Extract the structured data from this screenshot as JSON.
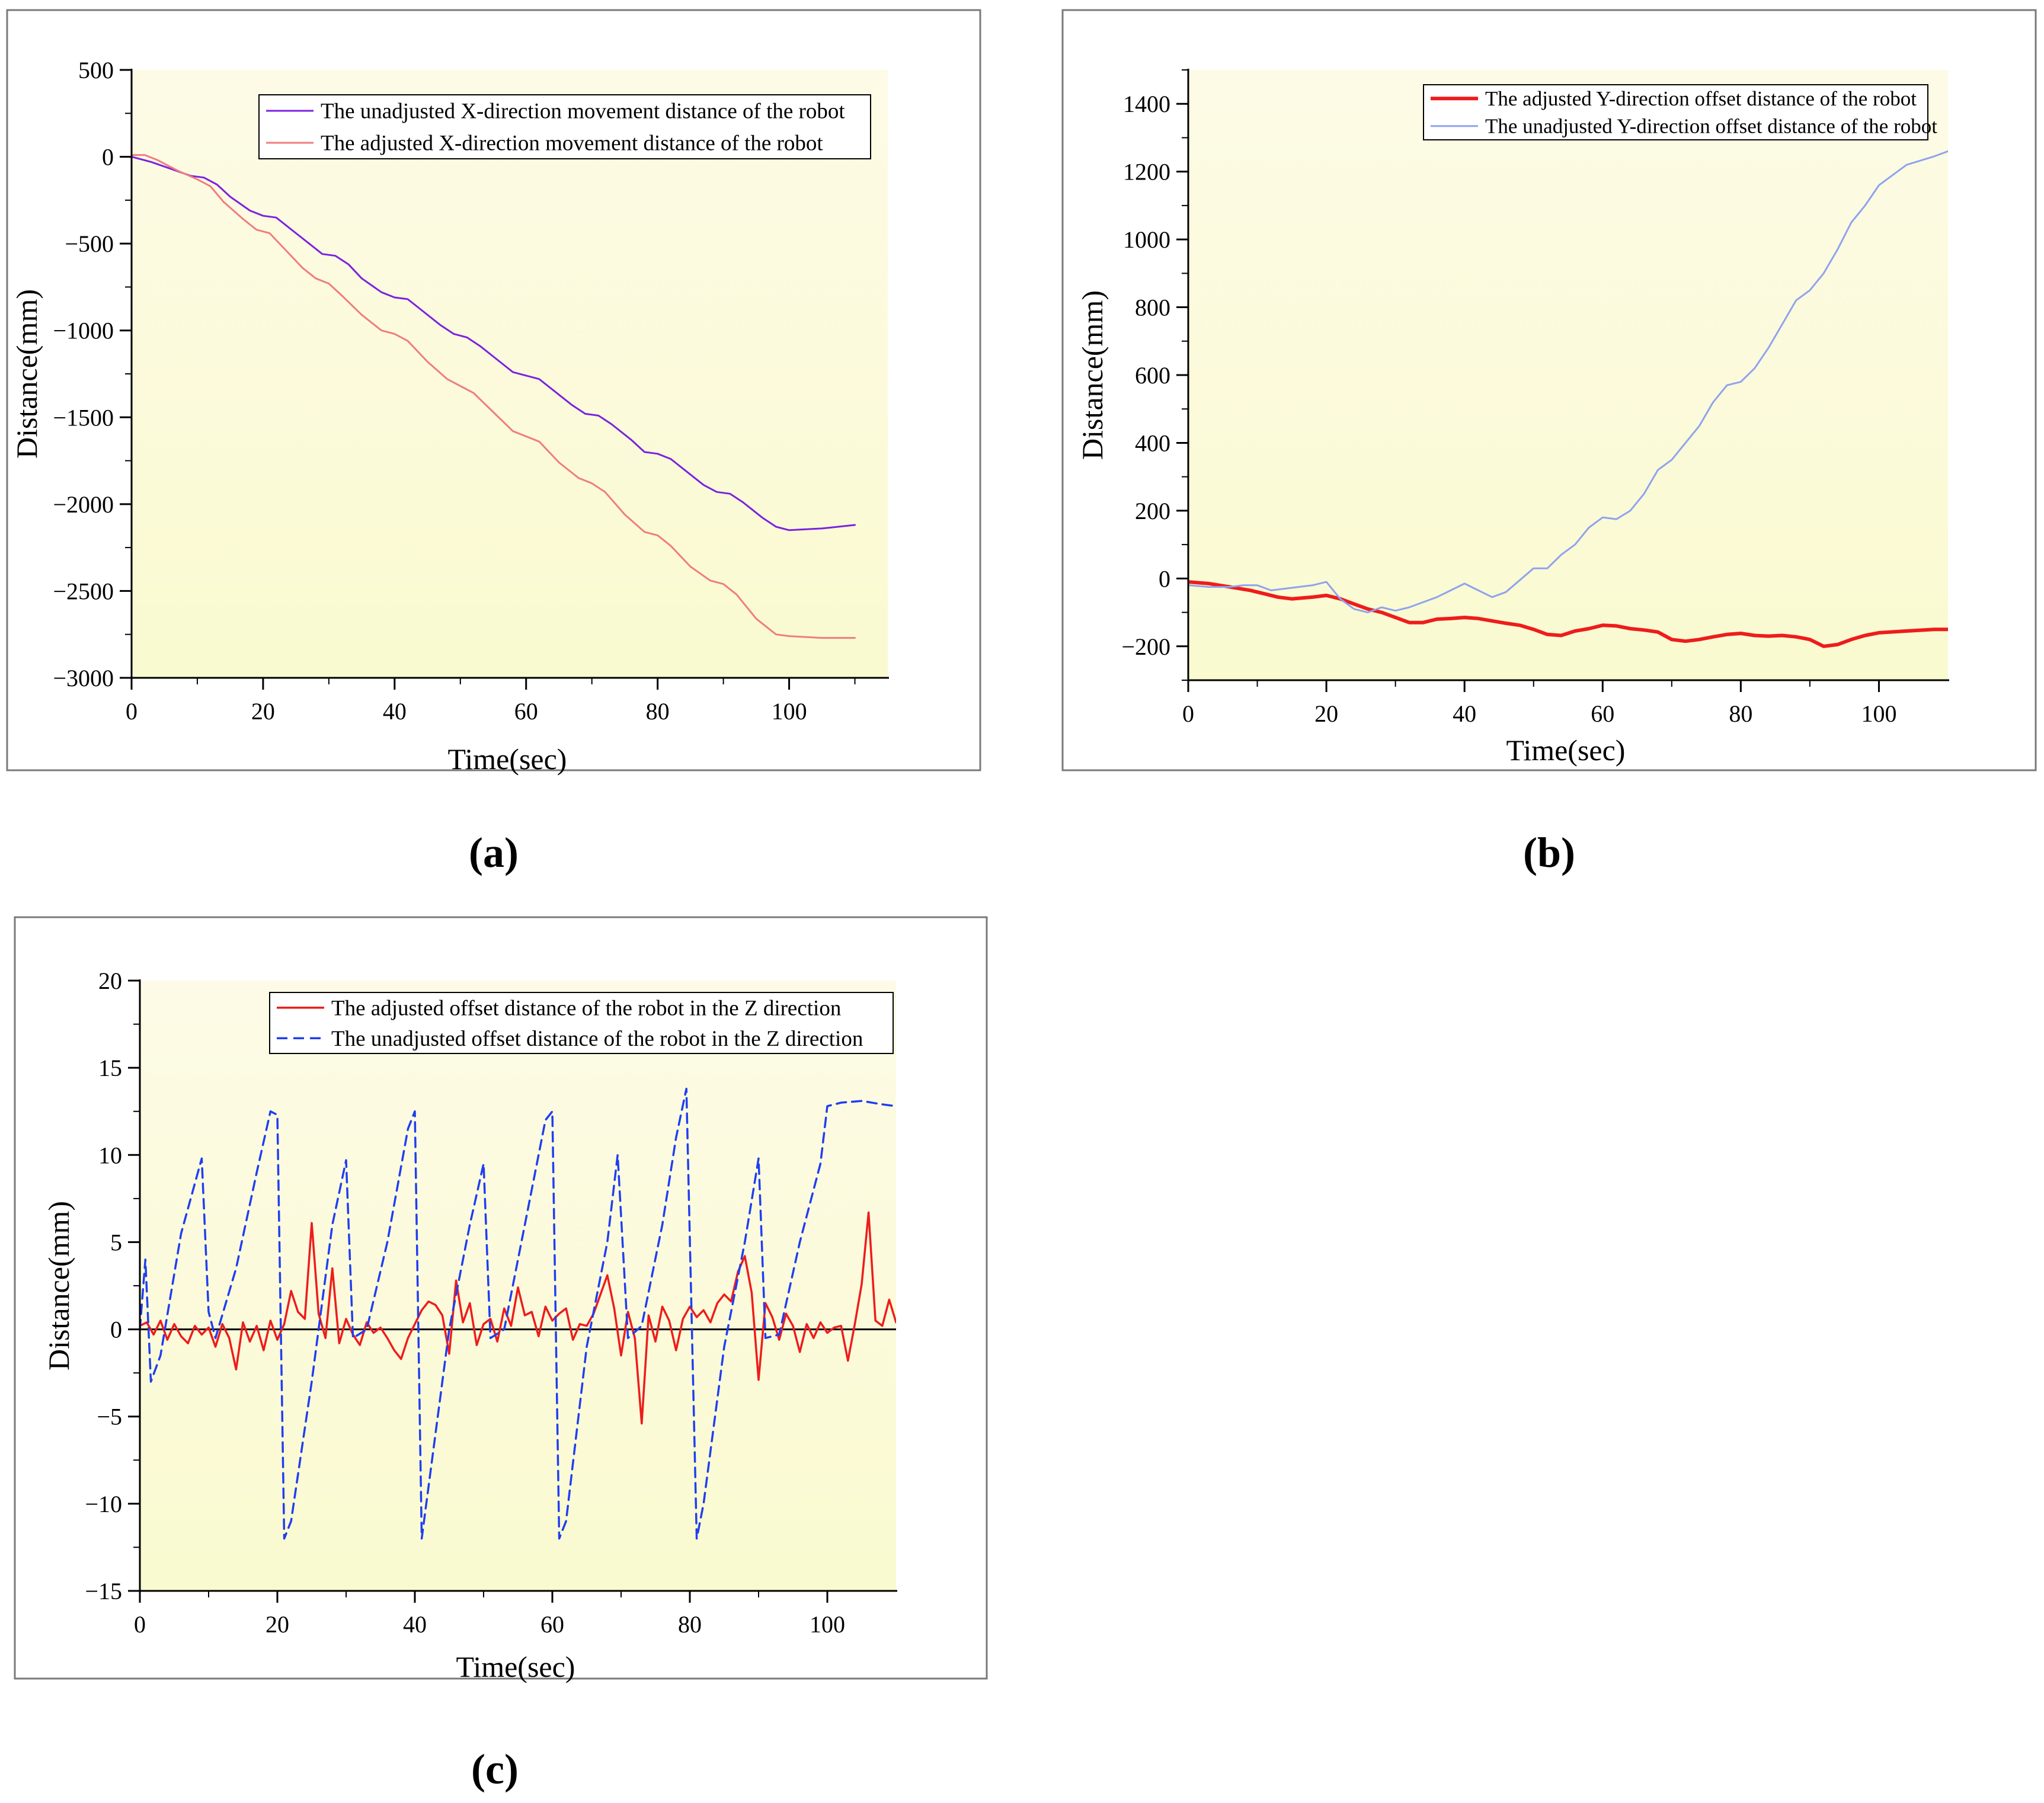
{
  "figure": {
    "panels": [
      {
        "label": "(a)",
        "title": "",
        "xlabel": "Time(sec)",
        "ylabel": "Distance(mm)",
        "xlim": [
          0,
          115
        ],
        "ylim": [
          -3000,
          500
        ],
        "xticks": [
          0,
          20,
          40,
          60,
          80,
          100
        ],
        "yticks": [
          500,
          0,
          -500,
          -1000,
          -1500,
          -2000,
          -2500,
          -3000
        ],
        "legend_position": "top-right"
      },
      {
        "label": "(b)",
        "title": "",
        "xlabel": "Time(sec)",
        "ylabel": "Distance(mm)",
        "xlim": [
          0,
          110
        ],
        "ylim": [
          -300,
          1500
        ],
        "xticks": [
          0,
          20,
          40,
          60,
          80,
          100
        ],
        "yticks": [
          1400,
          1200,
          1000,
          800,
          600,
          400,
          200,
          0,
          -200
        ],
        "legend_position": "top-right"
      },
      {
        "label": "(c)",
        "title": "",
        "xlabel": "Time(sec)",
        "ylabel": "Distance(mm)",
        "xlim": [
          0,
          110
        ],
        "ylim": [
          -15,
          20
        ],
        "xticks": [
          0,
          20,
          40,
          60,
          80,
          100
        ],
        "yticks": [
          20,
          15,
          10,
          5,
          0,
          -5,
          -10,
          -15
        ],
        "legend_position": "top-right"
      }
    ]
  },
  "chart_data": [
    {
      "type": "line",
      "title": "",
      "xlabel": "Time(sec)",
      "ylabel": "Distance(mm)",
      "ylim": [
        -3000,
        500
      ],
      "series": [
        {
          "name": "The unadjusted X-direction movement distance of the robot",
          "color": "#7b22e0",
          "dash": "",
          "width": 3,
          "x": [
            0,
            3,
            6,
            9,
            11,
            13,
            15,
            18,
            20,
            22,
            24,
            27,
            29,
            31,
            33,
            35,
            38,
            40,
            42,
            44,
            47,
            49,
            51,
            53,
            56,
            58,
            60,
            62,
            64,
            67,
            69,
            71,
            73,
            76,
            78,
            80,
            82,
            84,
            87,
            89,
            91,
            93,
            96,
            98,
            100,
            105,
            110
          ],
          "y": [
            0,
            -30,
            -70,
            -110,
            -120,
            -160,
            -230,
            -310,
            -340,
            -350,
            -410,
            -500,
            -560,
            -570,
            -620,
            -700,
            -780,
            -810,
            -820,
            -880,
            -970,
            -1020,
            -1040,
            -1090,
            -1180,
            -1240,
            -1260,
            -1280,
            -1340,
            -1430,
            -1480,
            -1490,
            -1540,
            -1630,
            -1700,
            -1710,
            -1740,
            -1800,
            -1890,
            -1930,
            -1940,
            -1990,
            -2080,
            -2130,
            -2150,
            -2140,
            -2120
          ]
        },
        {
          "name": "The adjusted X-direction movement distance of the robot",
          "color": "#f07d7d",
          "dash": "",
          "width": 3,
          "x": [
            0,
            2,
            4,
            7,
            10,
            12,
            14,
            17,
            19,
            21,
            23,
            26,
            28,
            30,
            32,
            35,
            38,
            40,
            42,
            45,
            48,
            50,
            52,
            55,
            58,
            60,
            62,
            65,
            68,
            70,
            72,
            75,
            78,
            80,
            82,
            85,
            88,
            90,
            92,
            95,
            98,
            100,
            105,
            110
          ],
          "y": [
            10,
            10,
            -20,
            -80,
            -130,
            -170,
            -260,
            -360,
            -420,
            -440,
            -520,
            -640,
            -700,
            -730,
            -800,
            -910,
            -1000,
            -1020,
            -1060,
            -1180,
            -1280,
            -1320,
            -1360,
            -1470,
            -1580,
            -1610,
            -1640,
            -1760,
            -1850,
            -1880,
            -1930,
            -2060,
            -2160,
            -2180,
            -2240,
            -2360,
            -2440,
            -2460,
            -2520,
            -2660,
            -2750,
            -2760,
            -2770,
            -2770
          ]
        }
      ]
    },
    {
      "type": "line",
      "title": "",
      "xlabel": "Time(sec)",
      "ylabel": "Distance(mm)",
      "ylim": [
        -300,
        1500
      ],
      "series": [
        {
          "name": "The adjusted Y-direction offset distance of the robot",
          "color": "#ee1c1c",
          "dash": "",
          "width": 6,
          "x": [
            0,
            3,
            6,
            9,
            11,
            13,
            15,
            18,
            20,
            22,
            24,
            26,
            28,
            30,
            32,
            34,
            36,
            38,
            40,
            42,
            44,
            46,
            48,
            50,
            52,
            54,
            56,
            58,
            60,
            62,
            64,
            66,
            68,
            70,
            72,
            74,
            76,
            78,
            80,
            82,
            84,
            86,
            88,
            90,
            92,
            94,
            96,
            98,
            100,
            104,
            108,
            110
          ],
          "y": [
            -10,
            -15,
            -25,
            -35,
            -45,
            -55,
            -60,
            -55,
            -50,
            -60,
            -75,
            -90,
            -100,
            -115,
            -130,
            -130,
            -120,
            -118,
            -115,
            -118,
            -125,
            -132,
            -138,
            -150,
            -165,
            -168,
            -155,
            -148,
            -138,
            -140,
            -148,
            -152,
            -158,
            -180,
            -185,
            -180,
            -172,
            -165,
            -162,
            -168,
            -170,
            -168,
            -172,
            -180,
            -200,
            -195,
            -180,
            -168,
            -160,
            -155,
            -150,
            -150
          ]
        },
        {
          "name": "The unadjusted Y-direction offset distance of the robot",
          "color": "#8fa3ee",
          "dash": "",
          "width": 3,
          "x": [
            0,
            3,
            6,
            8,
            10,
            12,
            14,
            16,
            18,
            20,
            22,
            24,
            26,
            28,
            30,
            32,
            34,
            36,
            38,
            40,
            42,
            44,
            46,
            48,
            50,
            52,
            54,
            56,
            58,
            60,
            62,
            64,
            66,
            68,
            70,
            72,
            74,
            76,
            78,
            80,
            82,
            84,
            86,
            88,
            90,
            92,
            94,
            96,
            98,
            100,
            104,
            108,
            110
          ],
          "y": [
            -20,
            -25,
            -25,
            -20,
            -20,
            -35,
            -30,
            -25,
            -20,
            -10,
            -60,
            -90,
            -100,
            -85,
            -95,
            -85,
            -70,
            -55,
            -35,
            -15,
            -35,
            -55,
            -40,
            -5,
            30,
            30,
            70,
            100,
            150,
            180,
            175,
            200,
            250,
            320,
            350,
            400,
            450,
            520,
            570,
            580,
            620,
            680,
            750,
            820,
            850,
            900,
            970,
            1050,
            1100,
            1160,
            1220,
            1245,
            1260
          ]
        }
      ]
    },
    {
      "type": "line",
      "title": "",
      "xlabel": "Time(sec)",
      "ylabel": "Distance(mm)",
      "ylim": [
        -15,
        20
      ],
      "series": [
        {
          "name": "The adjusted offset distance of the robot in the Z direction",
          "color": "#ee1c1c",
          "dash": "",
          "width": 3.5,
          "x": [
            0,
            1,
            2,
            3,
            4,
            5,
            6,
            7,
            8,
            9,
            10,
            11,
            12,
            13,
            14,
            15,
            16,
            17,
            18,
            19,
            20,
            21,
            22,
            23,
            24,
            25,
            26,
            27,
            28,
            29,
            30,
            31,
            32,
            33,
            34,
            35,
            36,
            37,
            38,
            39,
            40,
            41,
            42,
            43,
            44,
            45,
            46,
            47,
            48,
            49,
            50,
            51,
            52,
            53,
            54,
            55,
            56,
            57,
            58,
            59,
            60,
            61,
            62,
            63,
            64,
            65,
            66,
            67,
            68,
            69,
            70,
            71,
            72,
            73,
            74,
            75,
            76,
            77,
            78,
            79,
            80,
            81,
            82,
            83,
            84,
            85,
            86,
            87,
            88,
            89,
            90,
            91,
            92,
            93,
            94,
            95,
            96,
            97,
            98,
            99,
            100,
            101,
            102,
            103,
            104,
            105,
            106,
            107,
            108,
            109,
            110
          ],
          "y": [
            0.2,
            0.4,
            -0.3,
            0.5,
            -0.6,
            0.3,
            -0.4,
            -0.8,
            0.2,
            -0.3,
            0.1,
            -1.0,
            0.3,
            -0.5,
            -2.3,
            0.4,
            -0.7,
            0.2,
            -1.2,
            0.5,
            -0.6,
            0.3,
            2.2,
            1.0,
            0.6,
            6.1,
            0.9,
            -0.5,
            3.5,
            -0.8,
            0.6,
            -0.3,
            -0.9,
            0.4,
            -0.2,
            0.1,
            -0.5,
            -1.2,
            -1.7,
            -0.5,
            0.3,
            1.1,
            1.6,
            1.4,
            0.8,
            -1.4,
            2.8,
            0.4,
            1.5,
            -0.9,
            0.3,
            0.6,
            -0.7,
            1.2,
            0.2,
            2.4,
            0.8,
            1.0,
            -0.4,
            1.3,
            0.5,
            0.9,
            1.2,
            -0.6,
            0.3,
            0.2,
            0.9,
            2.0,
            3.1,
            1.2,
            -1.5,
            1.0,
            -0.5,
            -5.4,
            0.8,
            -0.7,
            1.3,
            0.5,
            -1.2,
            0.6,
            1.3,
            0.7,
            1.1,
            0.4,
            1.5,
            2.0,
            1.6,
            3.3,
            4.2,
            2.1,
            -2.9,
            1.5,
            0.7,
            -0.6,
            0.9,
            0.2,
            -1.3,
            0.3,
            -0.5,
            0.4,
            -0.2,
            0.1,
            0.2,
            -1.8,
            0.3,
            2.6,
            6.7,
            0.5,
            0.2,
            1.7,
            0.4
          ]
        },
        {
          "name": "The unadjusted offset distance of the robot in the Z direction",
          "color": "#1f3ff0",
          "dash": "16 10",
          "width": 3.5,
          "x": [
            0,
            0.8,
            1.6,
            3,
            6,
            9,
            10,
            11,
            14,
            17,
            19,
            20,
            21,
            22,
            25,
            28,
            30,
            31,
            33,
            36,
            39,
            40,
            41,
            42,
            45,
            48,
            50,
            51,
            53,
            56,
            59,
            60,
            61,
            62,
            65,
            68,
            69.5,
            71,
            73,
            76,
            78,
            79.5,
            81,
            82,
            85,
            88,
            90,
            91,
            93,
            96,
            99,
            100,
            102,
            105,
            108,
            110
          ],
          "y": [
            0,
            4.0,
            -3.0,
            -1.5,
            5.5,
            9.8,
            1.0,
            -0.5,
            3.5,
            9.0,
            12.5,
            12.3,
            -12.0,
            -11.0,
            -3.0,
            6.0,
            9.7,
            -0.5,
            0.0,
            5.0,
            11.5,
            12.5,
            -12.0,
            -9.0,
            0.0,
            6.0,
            9.5,
            -0.5,
            0.0,
            6.0,
            12.0,
            12.5,
            -12.0,
            -11.0,
            -1.0,
            5.0,
            10.0,
            -0.5,
            0.2,
            6.0,
            11.0,
            13.8,
            -12.0,
            -10.0,
            -1.0,
            5.0,
            9.8,
            -0.5,
            -0.3,
            5.0,
            9.5,
            12.8,
            13.0,
            13.1,
            12.9,
            12.8
          ]
        }
      ]
    }
  ]
}
